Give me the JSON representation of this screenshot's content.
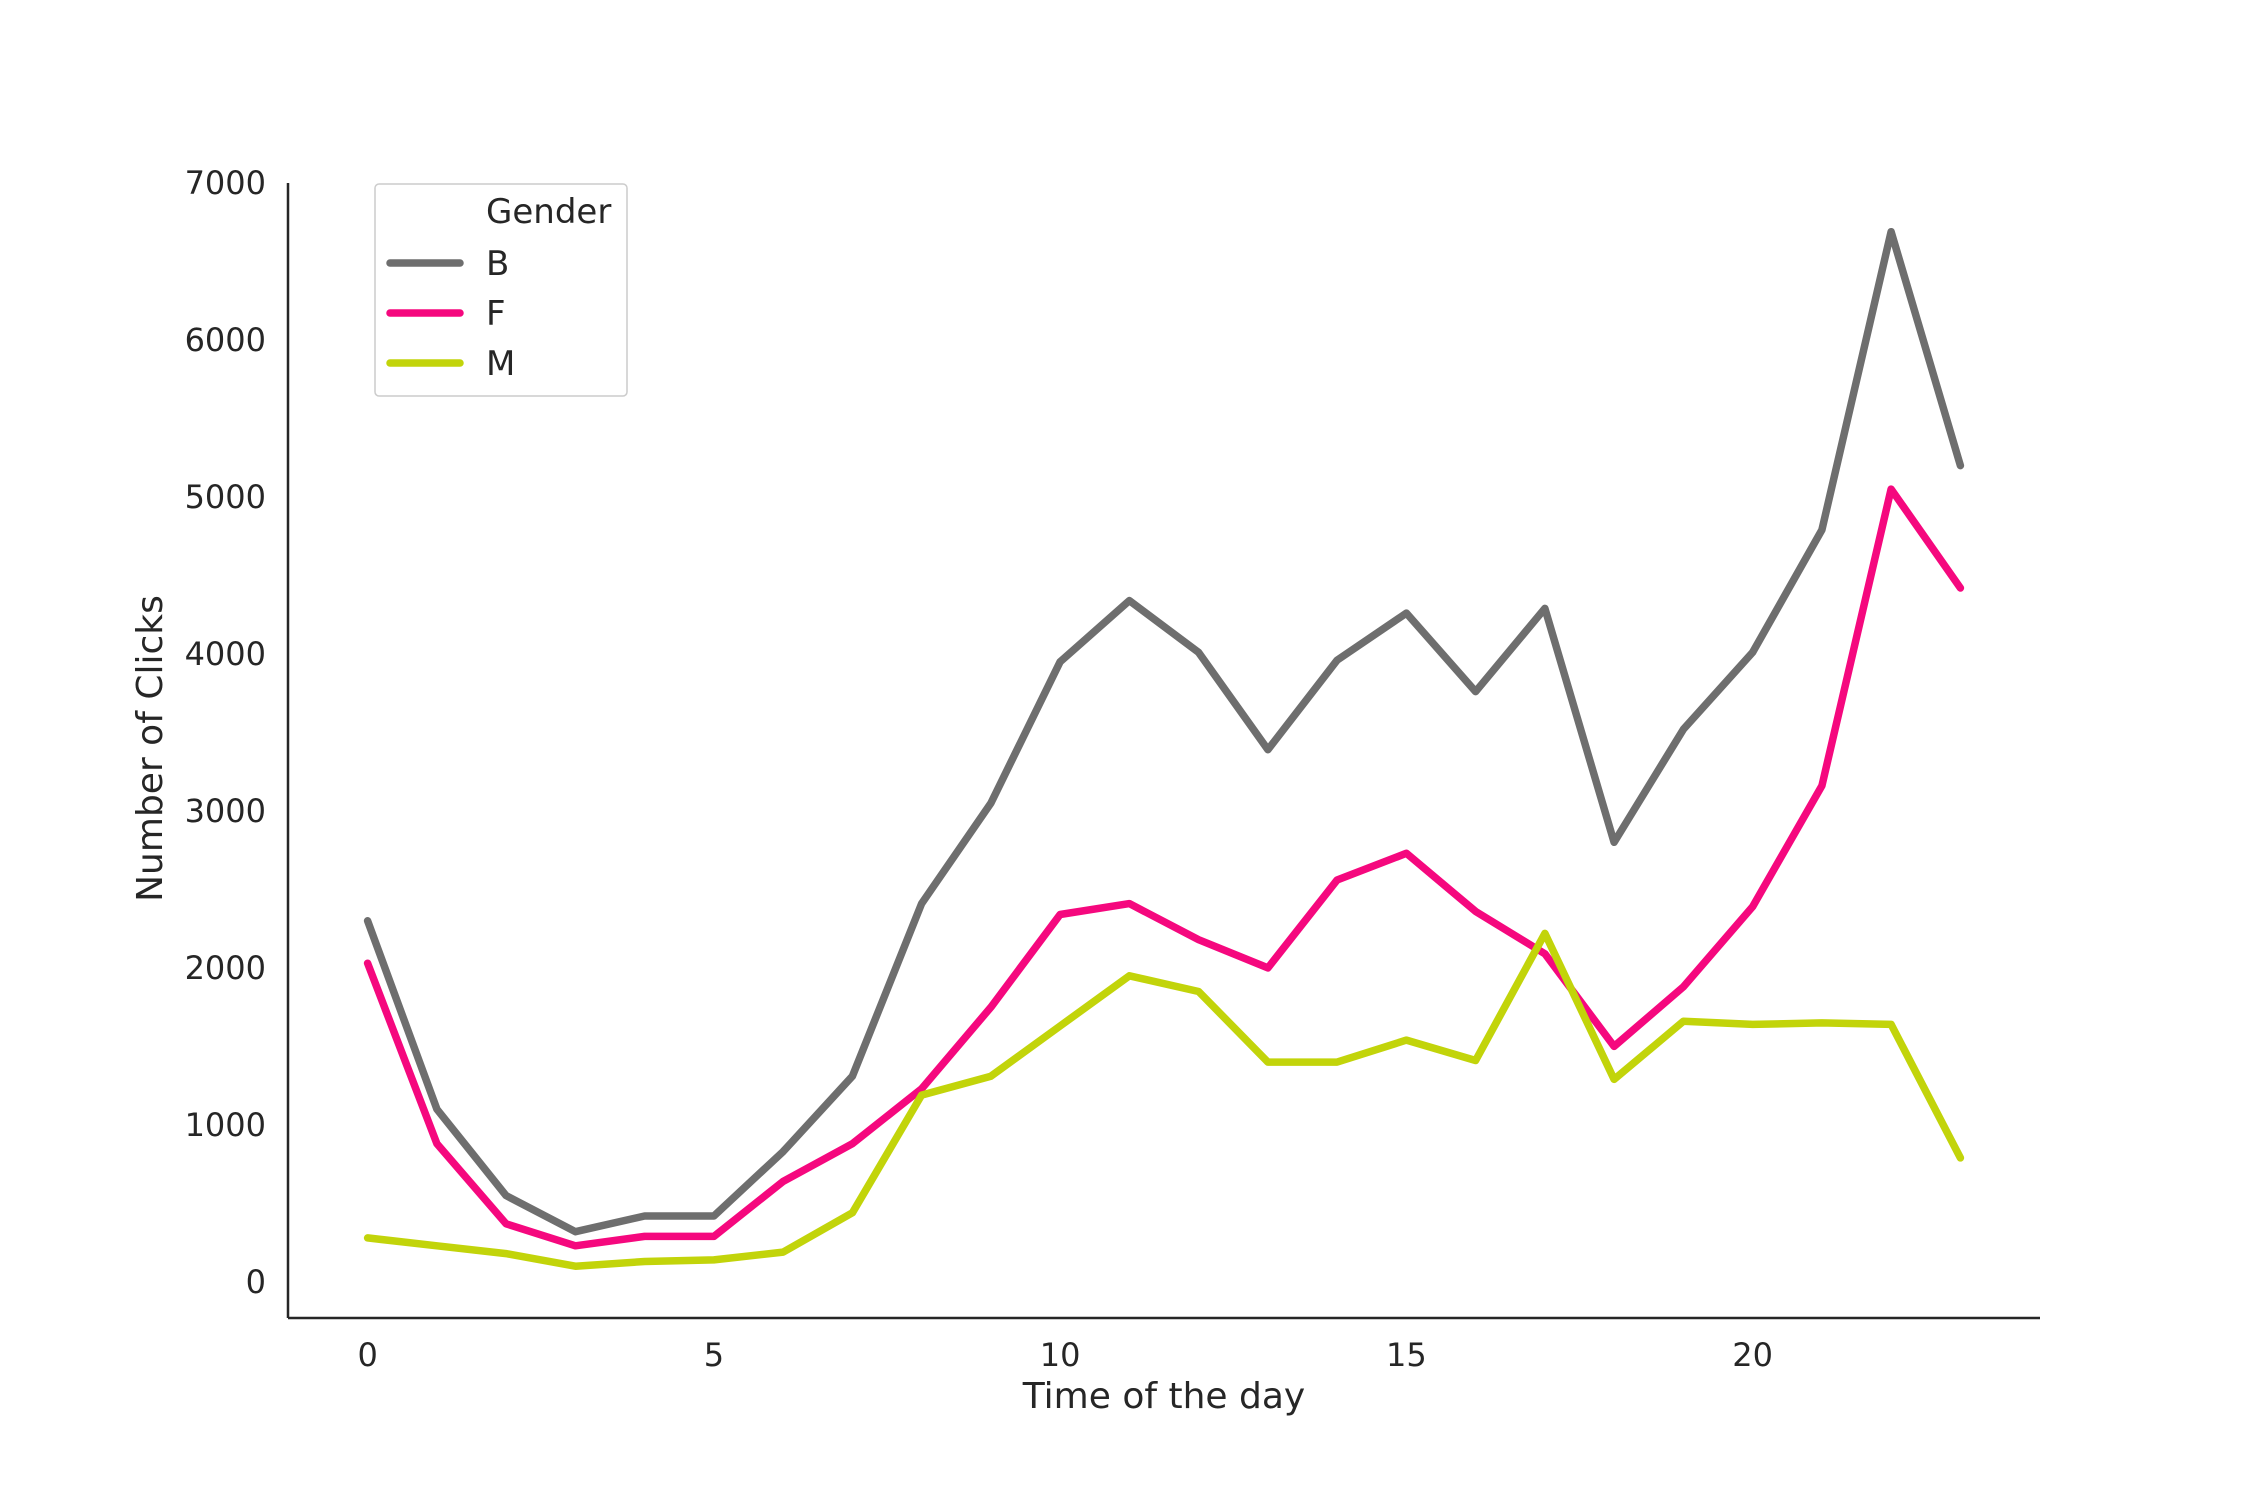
{
  "chart_data": {
    "type": "line",
    "xlabel": "Time of the day",
    "ylabel": "Number of Clicks",
    "xlim": [
      -1.15,
      24.15
    ],
    "ylim": [
      -230,
      7000
    ],
    "x_ticks": [
      0,
      5,
      10,
      15,
      20
    ],
    "y_ticks": [
      0,
      1000,
      2000,
      3000,
      4000,
      5000,
      6000,
      7000
    ],
    "grid": false,
    "legend": {
      "title": "Gender",
      "placement": "top-left"
    },
    "x": [
      0,
      1,
      2,
      3,
      4,
      5,
      6,
      7,
      8,
      9,
      10,
      11,
      12,
      13,
      14,
      15,
      16,
      17,
      18,
      19,
      20,
      21,
      22,
      23
    ],
    "series": [
      {
        "name": "B",
        "color": "#6e6e6e",
        "values": [
          2300,
          1100,
          550,
          320,
          420,
          420,
          830,
          1310,
          2410,
          3050,
          3950,
          4340,
          4010,
          3390,
          3960,
          4260,
          3760,
          4290,
          2800,
          3520,
          4010,
          4790,
          6690,
          5200
        ]
      },
      {
        "name": "F",
        "color": "#f5087e",
        "values": [
          2030,
          880,
          370,
          230,
          290,
          290,
          640,
          880,
          1230,
          1750,
          2340,
          2410,
          2180,
          2000,
          2560,
          2730,
          2360,
          2090,
          1500,
          1880,
          2390,
          3160,
          5050,
          4420
        ]
      },
      {
        "name": "M",
        "color": "#c2d40a",
        "values": [
          280,
          230,
          180,
          100,
          130,
          140,
          190,
          440,
          1190,
          1310,
          1630,
          1950,
          1850,
          1400,
          1400,
          1540,
          1410,
          2220,
          1290,
          1660,
          1640,
          1650,
          1640,
          790
        ]
      }
    ]
  }
}
